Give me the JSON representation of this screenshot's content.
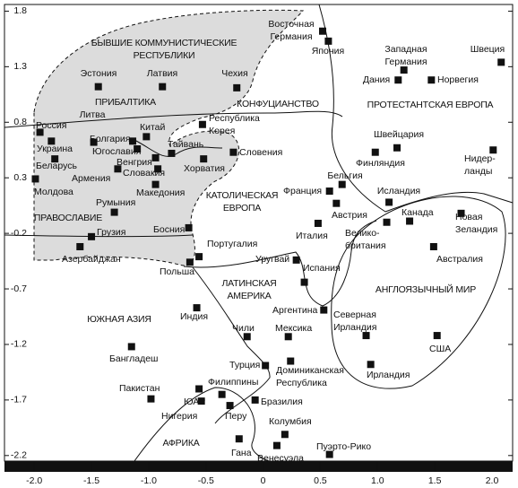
{
  "chart_data": {
    "type": "scatter",
    "xlim": [
      -2.26,
      2.18
    ],
    "ylim": [
      -2.25,
      1.86
    ],
    "xticks": [
      {
        "value": -2,
        "label": "-2.0"
      },
      -1.5,
      {
        "value": -1,
        "label": "-1.0"
      },
      -0.5,
      0,
      0.5,
      {
        "value": 1,
        "label": "1.0"
      },
      1.5,
      {
        "value": 2,
        "label": "2.0"
      }
    ],
    "yticks": [
      1.8,
      1.3,
      0.8,
      0.3,
      -0.2,
      -0.7,
      -1.2,
      -1.7,
      -2.2
    ],
    "color": "#111111",
    "regions": [
      [
        "БЫВШИЕ КОММУНИСТИЧЕСКИЕ",
        "РЕСПУБЛИКИ"
      ],
      [
        "ПРИБАЛТИКА"
      ],
      [
        "КОНФУЦИАНСТВО"
      ],
      [
        "ПРОТЕСТАНТСКАЯ ЕВРОПА"
      ],
      [
        "КАТОЛИЧЕСКАЯ",
        "ЕВРОПА"
      ],
      [
        "ПРАВОСЛАВИЕ"
      ],
      [
        "ЛАТИНСКАЯ",
        "АМЕРИКА"
      ],
      [
        "АНГЛОЯЗЫЧНЫЙ МИР"
      ],
      [
        "ЮЖНАЯ АЗИЯ"
      ],
      [
        "АФРИКА"
      ]
    ],
    "points": [
      {
        "label": [
          "Восточная",
          "Германия"
        ],
        "x": 0.52,
        "y": 1.62
      },
      {
        "label": [
          "Япония"
        ],
        "x": 0.57,
        "y": 1.53
      },
      {
        "label": [
          "Швеция"
        ],
        "x": 2.08,
        "y": 1.34
      },
      {
        "label": [
          "Западная",
          "Германия"
        ],
        "x": 1.23,
        "y": 1.27
      },
      {
        "label": [
          "Дания"
        ],
        "x": 1.18,
        "y": 1.18
      },
      {
        "label": [
          "Норвегия"
        ],
        "x": 1.47,
        "y": 1.18
      },
      {
        "label": [
          "Эстония"
        ],
        "x": -1.44,
        "y": 1.12
      },
      {
        "label": [
          "Латвия"
        ],
        "x": -0.88,
        "y": 1.12
      },
      {
        "label": [
          "Чехия"
        ],
        "x": -0.23,
        "y": 1.11
      },
      {
        "label": [
          "Республика",
          "Корея"
        ],
        "x": -0.53,
        "y": 0.78
      },
      {
        "label": [
          "Китай"
        ],
        "x": -1.02,
        "y": 0.67
      },
      {
        "label": [
          "Литва"
        ],
        "x": -1.48,
        "y": 0.62
      },
      {
        "label": [
          "Россия"
        ],
        "x": -1.95,
        "y": 0.71
      },
      {
        "label": [
          "Украина"
        ],
        "x": -1.85,
        "y": 0.63
      },
      {
        "label": [
          "Болгария"
        ],
        "x": -1.14,
        "y": 0.63
      },
      {
        "label": [
          "Беларусь"
        ],
        "x": -1.82,
        "y": 0.47
      },
      {
        "label": [
          "Югославия"
        ],
        "x": -1.1,
        "y": 0.56
      },
      {
        "label": [
          "Тайвань"
        ],
        "x": -0.8,
        "y": 0.52
      },
      {
        "label": [
          "Словения"
        ],
        "x": -0.26,
        "y": 0.53
      },
      {
        "label": [
          "Венгрия"
        ],
        "x": -0.94,
        "y": 0.48
      },
      {
        "label": [
          "Словакия"
        ],
        "x": -0.92,
        "y": 0.38
      },
      {
        "label": [
          "Хорватия"
        ],
        "x": -0.52,
        "y": 0.47
      },
      {
        "label": [
          "Швейцария"
        ],
        "x": 1.17,
        "y": 0.57
      },
      {
        "label": [
          "Финляндия"
        ],
        "x": 0.98,
        "y": 0.53
      },
      {
        "label": [
          "Нидер-",
          "ланды"
        ],
        "x": 2.01,
        "y": 0.55
      },
      {
        "label": [
          "Армения"
        ],
        "x": -1.27,
        "y": 0.38
      },
      {
        "label": [
          "Македония"
        ],
        "x": -0.94,
        "y": 0.24
      },
      {
        "label": [
          "Молдова"
        ],
        "x": -1.99,
        "y": 0.29
      },
      {
        "label": [
          "Румыния"
        ],
        "x": -1.3,
        "y": -0.01
      },
      {
        "label": [
          "Бельгия"
        ],
        "x": 0.69,
        "y": 0.24
      },
      {
        "label": [
          "Франция"
        ],
        "x": 0.58,
        "y": 0.18
      },
      {
        "label": [
          "Австрия"
        ],
        "x": 0.64,
        "y": 0.07
      },
      {
        "label": [
          "Исландия"
        ],
        "x": 1.1,
        "y": 0.08
      },
      {
        "label": [
          "Канада"
        ],
        "x": 1.28,
        "y": -0.09
      },
      {
        "label": [
          "Италия"
        ],
        "x": 0.48,
        "y": -0.11
      },
      {
        "label": [
          "Велико-",
          "британия"
        ],
        "x": 1.08,
        "y": -0.1
      },
      {
        "label": [
          "Новая",
          "Зеландия"
        ],
        "x": 1.73,
        "y": -0.02
      },
      {
        "label": [
          "Грузия"
        ],
        "x": -1.5,
        "y": -0.23
      },
      {
        "label": [
          "Босния"
        ],
        "x": -0.65,
        "y": -0.15
      },
      {
        "label": [
          "Азербайджан"
        ],
        "x": -1.6,
        "y": -0.32
      },
      {
        "label": [
          "Португалия"
        ],
        "x": -0.56,
        "y": -0.41
      },
      {
        "label": [
          "Польша"
        ],
        "x": -0.64,
        "y": -0.46
      },
      {
        "label": [
          "Австралия"
        ],
        "x": 1.49,
        "y": -0.32
      },
      {
        "label": [
          "Уругвай"
        ],
        "x": 0.29,
        "y": -0.44
      },
      {
        "label": [
          "Испания"
        ],
        "x": 0.36,
        "y": -0.64
      },
      {
        "label": [
          "Аргентина"
        ],
        "x": 0.53,
        "y": -0.89
      },
      {
        "label": [
          "Индия"
        ],
        "x": -0.58,
        "y": -0.87
      },
      {
        "label": [
          "Чили"
        ],
        "x": -0.14,
        "y": -1.13
      },
      {
        "label": [
          "Мексика"
        ],
        "x": 0.22,
        "y": -1.13
      },
      {
        "label": [
          "Северная",
          "Ирландия"
        ],
        "x": 0.9,
        "y": -1.12
      },
      {
        "label": [
          "США"
        ],
        "x": 1.52,
        "y": -1.12
      },
      {
        "label": [
          "Бангладеш"
        ],
        "x": -1.15,
        "y": -1.22
      },
      {
        "label": [
          "Турция"
        ],
        "x": 0.02,
        "y": -1.39
      },
      {
        "label": [
          "Доминиканская",
          "Республика"
        ],
        "x": 0.24,
        "y": -1.35
      },
      {
        "label": [
          "Ирландия"
        ],
        "x": 0.94,
        "y": -1.38
      },
      {
        "label": [
          "Пакистан"
        ],
        "x": -0.98,
        "y": -1.69
      },
      {
        "label": [
          "ЮАР"
        ],
        "x": -0.56,
        "y": -1.6
      },
      {
        "label": [
          "Филиппины"
        ],
        "x": -0.36,
        "y": -1.65
      },
      {
        "label": [
          "Бразилия"
        ],
        "x": -0.07,
        "y": -1.7
      },
      {
        "label": [
          "Нигерия"
        ],
        "x": -0.54,
        "y": -1.71
      },
      {
        "label": [
          "Перу"
        ],
        "x": -0.29,
        "y": -1.75
      },
      {
        "label": [
          "Колумбия"
        ],
        "x": 0.19,
        "y": -2.01
      },
      {
        "label": [
          "Гана"
        ],
        "x": -0.21,
        "y": -2.05
      },
      {
        "label": [
          "Венесуэла"
        ],
        "x": 0.12,
        "y": -2.11
      },
      {
        "label": [
          "Пуэрто-Рико"
        ],
        "x": 0.58,
        "y": -2.19
      }
    ]
  }
}
